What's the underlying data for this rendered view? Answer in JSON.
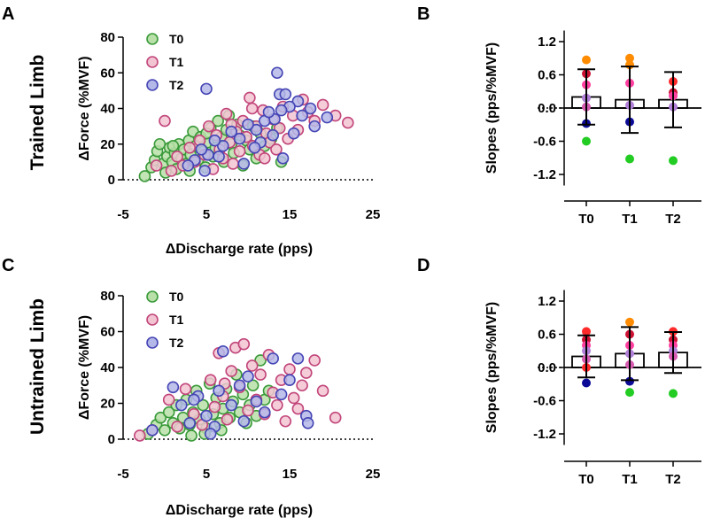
{
  "figure": {
    "row_labels": [
      "Trained Limb",
      "Untrained Limb"
    ],
    "colors": {
      "T0": "#3a9a3a",
      "T0_fill": "#b8e0a8",
      "T1": "#c2457a",
      "T1_fill": "#f2c4d2",
      "T2": "#4545b5",
      "T2_fill": "#b4b8e8",
      "dot_palette": [
        "#ff8c00",
        "#ff2a2a",
        "#cc1133",
        "#ff3fa0",
        "#b07fd8",
        "#d65bb0",
        "#0a0a96",
        "#22cc22"
      ]
    }
  },
  "chart_data": [
    {
      "panel": "A",
      "type": "scatter",
      "xlabel": "ΔDischarge rate (pps)",
      "ylabel": "ΔForce (%MVF)",
      "xlim": [
        -5,
        25
      ],
      "ylim": [
        0,
        80
      ],
      "xticks": [
        "-5",
        "5",
        "15",
        "25"
      ],
      "yticks": [
        "0",
        "20",
        "40",
        "60",
        "80"
      ],
      "reference_line_y": 0,
      "series": [
        {
          "name": "T0",
          "points": [
            [
              -2.4,
              2
            ],
            [
              -1.6,
              7
            ],
            [
              -1.2,
              11
            ],
            [
              -0.9,
              16
            ],
            [
              -0.6,
              20
            ],
            [
              -0.2,
              9
            ],
            [
              0.1,
              4
            ],
            [
              0.3,
              13
            ],
            [
              0.6,
              18
            ],
            [
              0.9,
              10
            ],
            [
              1.2,
              15
            ],
            [
              1.4,
              6
            ],
            [
              1.7,
              20
            ],
            [
              2.0,
              12
            ],
            [
              2.3,
              17
            ],
            [
              2.6,
              9
            ],
            [
              2.9,
              22
            ],
            [
              3.1,
              14
            ],
            [
              3.4,
              27
            ],
            [
              3.7,
              19
            ],
            [
              4.0,
              11
            ],
            [
              4.3,
              24
            ],
            [
              4.6,
              16
            ],
            [
              4.9,
              7
            ],
            [
              5.2,
              21
            ],
            [
              5.5,
              29
            ],
            [
              5.8,
              13
            ],
            [
              6.1,
              18
            ],
            [
              6.4,
              33
            ],
            [
              6.8,
              24
            ],
            [
              7.1,
              10
            ],
            [
              7.4,
              28
            ],
            [
              7.7,
              36
            ],
            [
              8.0,
              20
            ],
            [
              8.3,
              15
            ],
            [
              8.7,
              31
            ],
            [
              9.0,
              25
            ],
            [
              9.4,
              8
            ],
            [
              9.8,
              22
            ],
            [
              10.2,
              17
            ],
            [
              10.6,
              30
            ],
            [
              11.0,
              12
            ],
            [
              11.5,
              26
            ],
            [
              12.0,
              19
            ],
            [
              12.8,
              23
            ],
            [
              13.5,
              29
            ],
            [
              14.0,
              10
            ],
            [
              1.0,
              19
            ],
            [
              3.0,
              5
            ],
            [
              5.0,
              26
            ]
          ]
        },
        {
          "name": "T1",
          "points": [
            [
              -1.0,
              8
            ],
            [
              0.0,
              33
            ],
            [
              0.8,
              5
            ],
            [
              1.5,
              13
            ],
            [
              2.2,
              8
            ],
            [
              3.0,
              18
            ],
            [
              3.6,
              10
            ],
            [
              4.2,
              22
            ],
            [
              4.8,
              14
            ],
            [
              5.3,
              30
            ],
            [
              5.8,
              6
            ],
            [
              6.2,
              25
            ],
            [
              6.6,
              17
            ],
            [
              7.0,
              12
            ],
            [
              7.4,
              37
            ],
            [
              7.8,
              21
            ],
            [
              8.2,
              9
            ],
            [
              8.6,
              27
            ],
            [
              9.0,
              16
            ],
            [
              9.4,
              33
            ],
            [
              9.8,
              24
            ],
            [
              10.2,
              46
            ],
            [
              10.6,
              19
            ],
            [
              11.0,
              30
            ],
            [
              11.4,
              14
            ],
            [
              11.8,
              39
            ],
            [
              12.2,
              26
            ],
            [
              12.6,
              21
            ],
            [
              13.0,
              34
            ],
            [
              13.4,
              17
            ],
            [
              13.8,
              29
            ],
            [
              14.2,
              41
            ],
            [
              14.8,
              23
            ],
            [
              15.4,
              36
            ],
            [
              16.0,
              28
            ],
            [
              16.6,
              45
            ],
            [
              17.2,
              38
            ],
            [
              18.0,
              33
            ],
            [
              19.0,
              42
            ],
            [
              20.5,
              36
            ],
            [
              22.0,
              32
            ],
            [
              12.0,
              12
            ],
            [
              8.0,
              31
            ],
            [
              10.5,
              40
            ]
          ]
        },
        {
          "name": "T2",
          "points": [
            [
              5.0,
              51
            ],
            [
              13.5,
              60
            ],
            [
              13.8,
              48
            ],
            [
              14.5,
              48
            ],
            [
              16.0,
              44
            ],
            [
              17.5,
              40
            ],
            [
              19.5,
              35
            ],
            [
              18.0,
              30
            ],
            [
              16.5,
              36
            ],
            [
              15.0,
              41
            ],
            [
              14.0,
              39
            ],
            [
              13.0,
              25
            ],
            [
              12.0,
              33
            ],
            [
              11.0,
              28
            ],
            [
              10.0,
              31
            ],
            [
              9.0,
              23
            ],
            [
              8.0,
              27
            ],
            [
              7.0,
              19
            ],
            [
              6.0,
              22
            ],
            [
              5.2,
              14
            ],
            [
              4.4,
              17
            ],
            [
              3.6,
              11
            ],
            [
              2.8,
              8
            ],
            [
              4.8,
              5
            ],
            [
              9.5,
              9
            ],
            [
              11.5,
              21
            ],
            [
              13.2,
              34
            ],
            [
              14.2,
              12
            ],
            [
              15.5,
              26
            ],
            [
              12.5,
              38
            ],
            [
              10.8,
              18
            ],
            [
              6.5,
              13
            ]
          ]
        }
      ]
    },
    {
      "panel": "B",
      "type": "bar",
      "ylabel": "Slopes (pps/%MVF)",
      "categories": [
        "T0",
        "T1",
        "T2"
      ],
      "ylim": [
        -1.4,
        1.4
      ],
      "yticks": [
        "-1.2",
        "-0.6",
        "0.0",
        "0.6",
        "1.2"
      ],
      "values": [
        0.2,
        0.15,
        0.15
      ],
      "error_sd": [
        0.5,
        0.6,
        0.5
      ],
      "individual_points": [
        [
          0.87,
          0.62,
          0.42,
          0.18,
          0.02,
          -0.28,
          -0.6
        ],
        [
          0.9,
          0.78,
          0.45,
          0.05,
          -0.25,
          -0.92
        ],
        [
          0.48,
          0.28,
          0.22,
          0.02,
          -0.95
        ]
      ],
      "reference_line_y": 0
    },
    {
      "panel": "C",
      "type": "scatter",
      "xlabel": "ΔDischarge rate (pps)",
      "ylabel": "ΔForce (%MVF)",
      "xlim": [
        -5,
        25
      ],
      "ylim": [
        0,
        80
      ],
      "xticks": [
        "-5",
        "5",
        "15",
        "25"
      ],
      "yticks": [
        "0",
        "20",
        "40",
        "60",
        "80"
      ],
      "reference_line_y": 0,
      "series": [
        {
          "name": "T0",
          "points": [
            [
              -2.0,
              3
            ],
            [
              -1.0,
              8
            ],
            [
              -0.5,
              12
            ],
            [
              0.0,
              5
            ],
            [
              0.5,
              15
            ],
            [
              1.0,
              9
            ],
            [
              1.4,
              19
            ],
            [
              1.8,
              6
            ],
            [
              2.2,
              12
            ],
            [
              2.6,
              22
            ],
            [
              3.0,
              8
            ],
            [
              3.4,
              15
            ],
            [
              3.8,
              27
            ],
            [
              4.2,
              11
            ],
            [
              4.6,
              19
            ],
            [
              5.0,
              6
            ],
            [
              5.4,
              31
            ],
            [
              5.8,
              14
            ],
            [
              6.2,
              23
            ],
            [
              6.6,
              9
            ],
            [
              7.0,
              17
            ],
            [
              7.4,
              28
            ],
            [
              7.8,
              12
            ],
            [
              8.2,
              21
            ],
            [
              8.6,
              36
            ],
            [
              9.0,
              15
            ],
            [
              9.4,
              25
            ],
            [
              9.8,
              9
            ],
            [
              10.2,
              19
            ],
            [
              10.6,
              30
            ],
            [
              11.0,
              13
            ],
            [
              11.5,
              44
            ],
            [
              12.0,
              22
            ],
            [
              12.5,
              27
            ],
            [
              4.8,
              3
            ],
            [
              6.8,
              5
            ],
            [
              3.2,
              2
            ]
          ]
        },
        {
          "name": "T1",
          "points": [
            [
              -3.0,
              2
            ],
            [
              -1.5,
              5
            ],
            [
              0.5,
              22
            ],
            [
              1.5,
              7
            ],
            [
              2.5,
              28
            ],
            [
              3.5,
              14
            ],
            [
              4.5,
              8
            ],
            [
              5.5,
              33
            ],
            [
              6.0,
              18
            ],
            [
              6.5,
              48
            ],
            [
              7.0,
              24
            ],
            [
              7.5,
              11
            ],
            [
              8.0,
              38
            ],
            [
              8.5,
              51
            ],
            [
              9.0,
              29
            ],
            [
              9.5,
              53
            ],
            [
              10.0,
              16
            ],
            [
              10.5,
              41
            ],
            [
              11.0,
              22
            ],
            [
              11.5,
              36
            ],
            [
              12.0,
              14
            ],
            [
              12.5,
              47
            ],
            [
              13.0,
              26
            ],
            [
              13.5,
              19
            ],
            [
              14.0,
              33
            ],
            [
              14.5,
              10
            ],
            [
              15.0,
              39
            ],
            [
              15.5,
              23
            ],
            [
              16.0,
              17
            ],
            [
              16.5,
              30
            ],
            [
              17.0,
              37
            ],
            [
              18.0,
              44
            ],
            [
              19.0,
              27
            ],
            [
              20.5,
              12
            ],
            [
              7.2,
              31
            ]
          ]
        },
        {
          "name": "T2",
          "points": [
            [
              -1.5,
              5
            ],
            [
              1.0,
              29
            ],
            [
              2.0,
              19
            ],
            [
              3.0,
              9
            ],
            [
              4.0,
              24
            ],
            [
              5.0,
              13
            ],
            [
              6.0,
              7
            ],
            [
              7.0,
              49
            ],
            [
              8.0,
              19
            ],
            [
              9.0,
              30
            ],
            [
              10.0,
              35
            ],
            [
              11.0,
              21
            ],
            [
              12.0,
              15
            ],
            [
              13.0,
              45
            ],
            [
              14.0,
              25
            ],
            [
              15.0,
              33
            ],
            [
              16.0,
              45
            ],
            [
              17.0,
              13
            ],
            [
              17.2,
              9
            ],
            [
              9.5,
              10
            ],
            [
              6.5,
              27
            ],
            [
              3.5,
              22
            ],
            [
              5.5,
              3
            ]
          ]
        }
      ]
    },
    {
      "panel": "D",
      "type": "bar",
      "ylabel": "Slopes (pps/%MVF)",
      "categories": [
        "T0",
        "T1",
        "T2"
      ],
      "ylim": [
        -1.4,
        1.4
      ],
      "yticks": [
        "-1.2",
        "-0.6",
        "0.0",
        "0.6",
        "1.2"
      ],
      "values": [
        0.2,
        0.25,
        0.27
      ],
      "error_sd": [
        0.38,
        0.48,
        0.37
      ],
      "individual_points": [
        [
          0.65,
          0.5,
          0.4,
          0.3,
          0.15,
          0.0,
          -0.28
        ],
        [
          0.82,
          0.6,
          0.4,
          0.25,
          0.05,
          -0.25,
          -0.45
        ],
        [
          0.65,
          0.5,
          0.4,
          0.3,
          0.2,
          -0.47
        ]
      ],
      "reference_line_y": 0
    }
  ]
}
